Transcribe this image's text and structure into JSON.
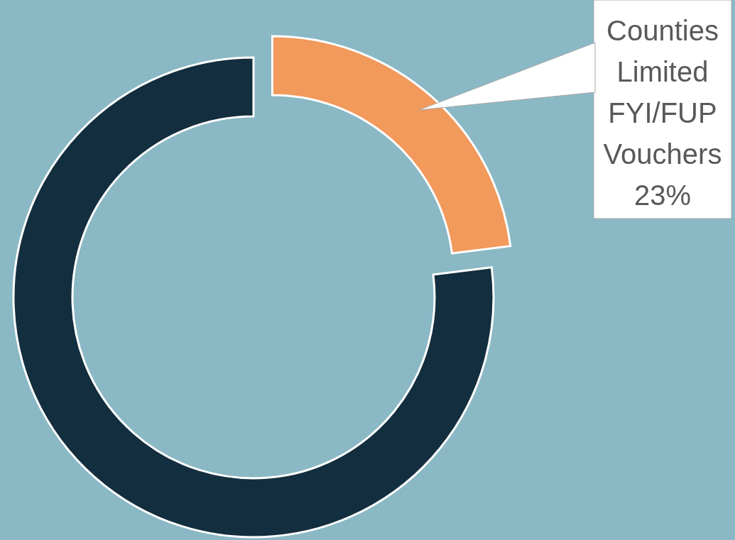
{
  "chart_data": {
    "type": "donut",
    "categories": [
      "Counties Limited FYI/FUP Vouchers",
      null
    ],
    "values": [
      23,
      77
    ],
    "colors": [
      "#f2995c",
      "#132e3e"
    ],
    "value_labels": [
      "23%",
      null
    ]
  }
}
